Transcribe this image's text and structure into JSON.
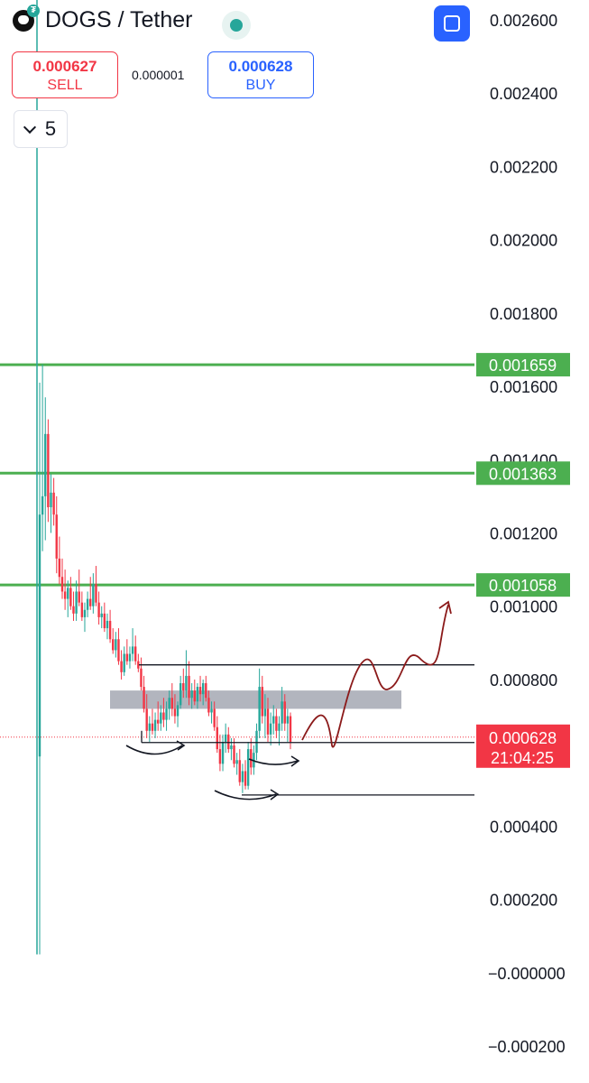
{
  "header": {
    "pair": "DOGS / Tether",
    "sell_price": "0.000627",
    "sell_label": "SELL",
    "spread": "0.000001",
    "buy_price": "0.000628",
    "buy_label": "BUY",
    "interval": "5"
  },
  "colors": {
    "up": "#26a69a",
    "down": "#f23645",
    "level": "#4caf50",
    "price_tag": "#f23645",
    "projection": "#8b1a1a"
  },
  "chart_data": {
    "type": "candlestick",
    "y_axis_ticks": [
      "0.002600",
      "0.002400",
      "0.002200",
      "0.002000",
      "0.001800",
      "0.001600",
      "0.001400",
      "0.001200",
      "0.001000",
      "0.000800",
      "0.000400",
      "0.000200",
      "−0.000000",
      "−0.000200"
    ],
    "ylim": [
      -0.00022,
      0.00265
    ],
    "horizontal_levels": [
      {
        "label": "0.001659",
        "value": 0.001659
      },
      {
        "label": "0.001363",
        "value": 0.001363
      },
      {
        "label": "0.001058",
        "value": 0.001058
      }
    ],
    "current_price": {
      "label": "0.000628",
      "value": 0.000628,
      "countdown": "21:04:25"
    },
    "support_resistance_lines": [
      0.00084,
      0.000628,
      0.000485
    ],
    "gray_zone": [
      0.00072,
      0.00077
    ],
    "ohlc": [
      [
        0.00059,
        0.00161,
        5e-05,
        0.00125
      ],
      [
        0.00125,
        0.00166,
        0.00115,
        0.0013
      ],
      [
        0.0013,
        0.00157,
        0.00118,
        0.00147
      ],
      [
        0.00147,
        0.00151,
        0.00123,
        0.00127
      ],
      [
        0.00127,
        0.00136,
        0.0012,
        0.00131
      ],
      [
        0.00131,
        0.00135,
        0.00122,
        0.00125
      ],
      [
        0.00125,
        0.0013,
        0.00109,
        0.00113
      ],
      [
        0.00113,
        0.00119,
        0.00106,
        0.00108
      ],
      [
        0.00108,
        0.00113,
        0.00102,
        0.00104
      ],
      [
        0.00104,
        0.0011,
        0.00099,
        0.00102
      ],
      [
        0.00102,
        0.00107,
        0.00097,
        0.00105
      ],
      [
        0.00105,
        0.00108,
        0.00099,
        0.001
      ],
      [
        0.001,
        0.00104,
        0.00096,
        0.00098
      ],
      [
        0.00098,
        0.00107,
        0.00096,
        0.00104
      ],
      [
        0.00104,
        0.0011,
        0.001,
        0.00101
      ],
      [
        0.00101,
        0.00104,
        0.00096,
        0.00097
      ],
      [
        0.00097,
        0.00101,
        0.00093,
        0.00099
      ],
      [
        0.00099,
        0.00104,
        0.00097,
        0.00102
      ],
      [
        0.00102,
        0.00108,
        0.00099,
        0.001
      ],
      [
        0.001,
        0.00109,
        0.00098,
        0.00106
      ],
      [
        0.00106,
        0.00111,
        0.001,
        0.00101
      ],
      [
        0.00101,
        0.00104,
        0.00095,
        0.00097
      ],
      [
        0.00097,
        0.001,
        0.00094,
        0.00098
      ],
      [
        0.00098,
        0.00101,
        0.00093,
        0.00094
      ],
      [
        0.00094,
        0.00098,
        0.00091,
        0.00096
      ],
      [
        0.00096,
        0.00099,
        0.0009,
        0.00091
      ],
      [
        0.00091,
        0.00094,
        0.00087,
        0.00088
      ],
      [
        0.00088,
        0.00093,
        0.00086,
        0.00091
      ],
      [
        0.00091,
        0.00094,
        0.00084,
        0.00085
      ],
      [
        0.00085,
        0.00088,
        0.0008,
        0.00082
      ],
      [
        0.00082,
        0.00089,
        0.00081,
        0.00087
      ],
      [
        0.00087,
        0.00091,
        0.00084,
        0.00085
      ],
      [
        0.00085,
        0.00089,
        0.00083,
        0.00087
      ],
      [
        0.00087,
        0.00094,
        0.00085,
        0.00089
      ],
      [
        0.00089,
        0.00092,
        0.00084,
        0.00085
      ],
      [
        0.00085,
        0.00087,
        0.00082,
        0.00083
      ],
      [
        0.00083,
        0.00086,
        0.00077,
        0.00078
      ],
      [
        0.00078,
        0.00081,
        0.00071,
        0.00072
      ],
      [
        0.00072,
        0.00076,
        0.00064,
        0.00066
      ],
      [
        0.00066,
        0.0007,
        0.00063,
        0.00068
      ],
      [
        0.00068,
        0.00072,
        0.00065,
        0.00066
      ],
      [
        0.00066,
        0.00071,
        0.00064,
        0.00069
      ],
      [
        0.00069,
        0.00074,
        0.00066,
        0.00068
      ],
      [
        0.00068,
        0.00073,
        0.00066,
        0.00071
      ],
      [
        0.00071,
        0.00075,
        0.00067,
        0.00069
      ],
      [
        0.00069,
        0.00074,
        0.00066,
        0.00072
      ],
      [
        0.00072,
        0.00077,
        0.00069,
        0.00075
      ],
      [
        0.00075,
        0.00079,
        0.0007,
        0.00072
      ],
      [
        0.00072,
        0.00076,
        0.00068,
        0.0007
      ],
      [
        0.0007,
        0.00074,
        0.00067,
        0.00073
      ],
      [
        0.00073,
        0.00081,
        0.00072,
        0.00079
      ],
      [
        0.00079,
        0.00083,
        0.00075,
        0.00077
      ],
      [
        0.00077,
        0.00088,
        0.00075,
        0.00081
      ],
      [
        0.00081,
        0.00085,
        0.00073,
        0.00075
      ],
      [
        0.00075,
        0.00079,
        0.00072,
        0.00077
      ],
      [
        0.00077,
        0.0008,
        0.00073,
        0.00074
      ],
      [
        0.00074,
        0.00079,
        0.00072,
        0.00078
      ],
      [
        0.00078,
        0.00081,
        0.00074,
        0.00076
      ],
      [
        0.00076,
        0.0008,
        0.00073,
        0.00079
      ],
      [
        0.00079,
        0.00081,
        0.00074,
        0.00075
      ],
      [
        0.00075,
        0.00077,
        0.0007,
        0.00071
      ],
      [
        0.00071,
        0.00074,
        0.00068,
        0.00072
      ],
      [
        0.00072,
        0.00074,
        0.00066,
        0.00067
      ],
      [
        0.00067,
        0.0007,
        0.0006,
        0.00061
      ],
      [
        0.00061,
        0.00065,
        0.00055,
        0.00057
      ],
      [
        0.00057,
        0.00065,
        0.00055,
        0.00063
      ],
      [
        0.00063,
        0.00068,
        0.0006,
        0.00065
      ],
      [
        0.00065,
        0.00067,
        0.0006,
        0.00061
      ],
      [
        0.00061,
        0.00064,
        0.00058,
        0.00062
      ],
      [
        0.00062,
        0.00064,
        0.00056,
        0.00057
      ],
      [
        0.00057,
        0.0006,
        0.00054,
        0.00058
      ],
      [
        0.00058,
        0.00061,
        0.00051,
        0.00052
      ],
      [
        0.00052,
        0.00057,
        0.00049,
        0.00055
      ],
      [
        0.00055,
        0.00058,
        0.0005,
        0.00051
      ],
      [
        0.00051,
        0.00063,
        0.0005,
        0.00061
      ],
      [
        0.00061,
        0.00064,
        0.00054,
        0.00056
      ],
      [
        0.00056,
        0.00062,
        0.00054,
        0.0006
      ],
      [
        0.0006,
        0.00068,
        0.00058,
        0.00066
      ],
      [
        0.00066,
        0.00083,
        0.00064,
        0.00078
      ],
      [
        0.00078,
        0.00081,
        0.00068,
        0.0007
      ],
      [
        0.0007,
        0.00076,
        0.00064,
        0.00072
      ],
      [
        0.00072,
        0.00075,
        0.00063,
        0.00065
      ],
      [
        0.00065,
        0.00071,
        0.00062,
        0.00068
      ],
      [
        0.00068,
        0.00073,
        0.00065,
        0.0007
      ],
      [
        0.0007,
        0.00072,
        0.00064,
        0.00066
      ],
      [
        0.00066,
        0.0007,
        0.00062,
        0.00068
      ],
      [
        0.00068,
        0.00078,
        0.00066,
        0.00074
      ],
      [
        0.00074,
        0.00076,
        0.00066,
        0.00068
      ],
      [
        0.00068,
        0.00072,
        0.00063,
        0.0007
      ],
      [
        0.0007,
        0.00071,
        0.00061,
        0.00063
      ]
    ],
    "projection_path": [
      [
        0.00065,
        0.00072,
        0.00064,
        0.00076,
        0.00085,
        0.00079,
        0.00078,
        0.00086,
        0.00089,
        0.00086,
        0.00093,
        0.00099
      ]
    ]
  }
}
